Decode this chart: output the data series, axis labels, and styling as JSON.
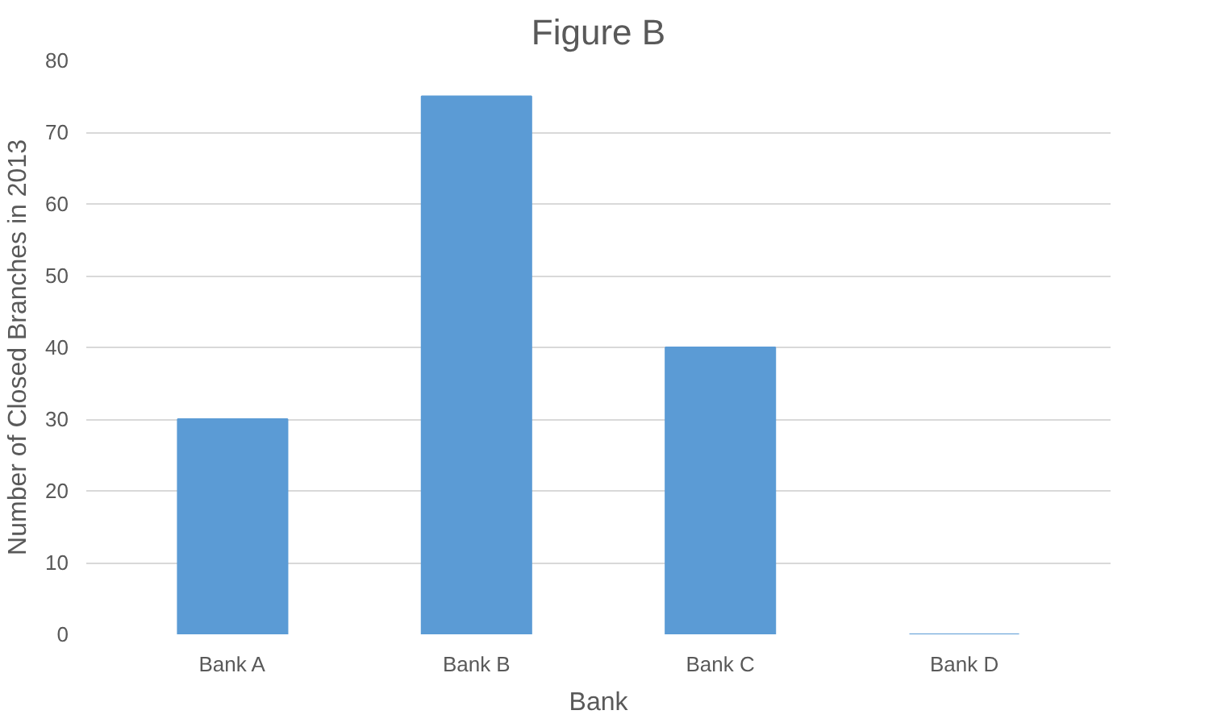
{
  "chart_data": {
    "type": "bar",
    "title": "Figure B",
    "xlabel": "Bank",
    "ylabel": "Number of Closed Branches in 2013",
    "categories": [
      "Bank A",
      "Bank B",
      "Bank C",
      "Bank D"
    ],
    "values": [
      30,
      75,
      40,
      0
    ],
    "color": "#5b9bd5",
    "ylim": [
      0,
      80
    ],
    "yticks": [
      0,
      10,
      20,
      30,
      40,
      50,
      60,
      70,
      80
    ],
    "grid": "y"
  }
}
